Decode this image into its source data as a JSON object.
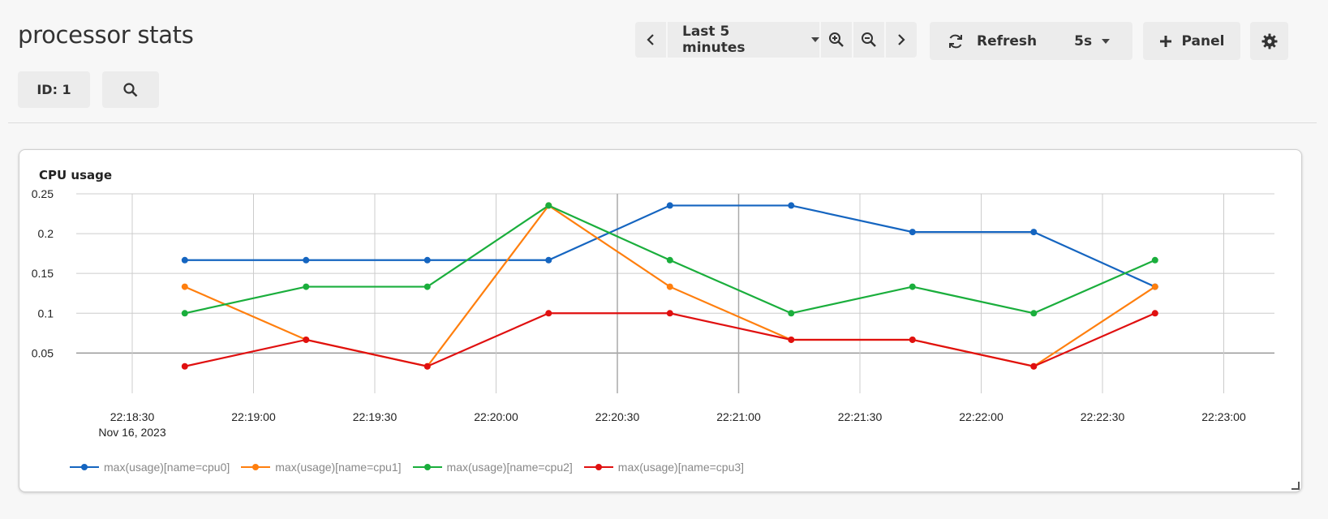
{
  "page": {
    "title": "processor stats"
  },
  "toolbar": {
    "time_range_label": "Last 5 minutes",
    "refresh_label": "Refresh",
    "refresh_interval": "5s",
    "add_panel_label": "Panel"
  },
  "filters": {
    "id_label": "ID: 1"
  },
  "panel": {
    "title": "CPU usage",
    "chart_data": {
      "type": "line",
      "title": "CPU usage",
      "x_tick_labels": [
        "22:18:30",
        "22:19:00",
        "22:19:30",
        "22:20:00",
        "22:20:30",
        "22:21:00",
        "22:21:30",
        "22:22:00",
        "22:22:30",
        "22:23:00"
      ],
      "x_date_label": "Nov 16, 2023",
      "x": [
        "22:18:43",
        "22:19:13",
        "22:19:43",
        "22:20:13",
        "22:20:43",
        "22:21:13",
        "22:21:43",
        "22:22:13",
        "22:22:43"
      ],
      "y_ticks": [
        "0.05",
        "0.1",
        "0.15",
        "0.2",
        "0.25"
      ],
      "ylim": [
        0.03,
        0.25
      ],
      "grid": true,
      "legend_position": "bottom-left",
      "series": [
        {
          "name": "max(usage)[name=cpu0]",
          "color": "#1565c0",
          "values": [
            0.1667,
            0.1667,
            0.1667,
            0.1667,
            0.2353,
            0.2353,
            0.202,
            0.202,
            0.1333
          ]
        },
        {
          "name": "max(usage)[name=cpu1]",
          "color": "#ff7f0e",
          "values": [
            0.1333,
            0.0667,
            0.0333,
            0.2353,
            0.1333,
            0.0667,
            0.0667,
            0.0333,
            0.1333
          ]
        },
        {
          "name": "max(usage)[name=cpu2]",
          "color": "#1aae3c",
          "values": [
            0.1,
            0.1333,
            0.1333,
            0.2353,
            0.1667,
            0.1,
            0.1333,
            0.1,
            0.1667
          ]
        },
        {
          "name": "max(usage)[name=cpu3]",
          "color": "#e01010",
          "values": [
            0.0333,
            0.0667,
            0.0333,
            0.1,
            0.1,
            0.0667,
            0.0667,
            0.0333,
            0.1
          ]
        }
      ]
    }
  }
}
